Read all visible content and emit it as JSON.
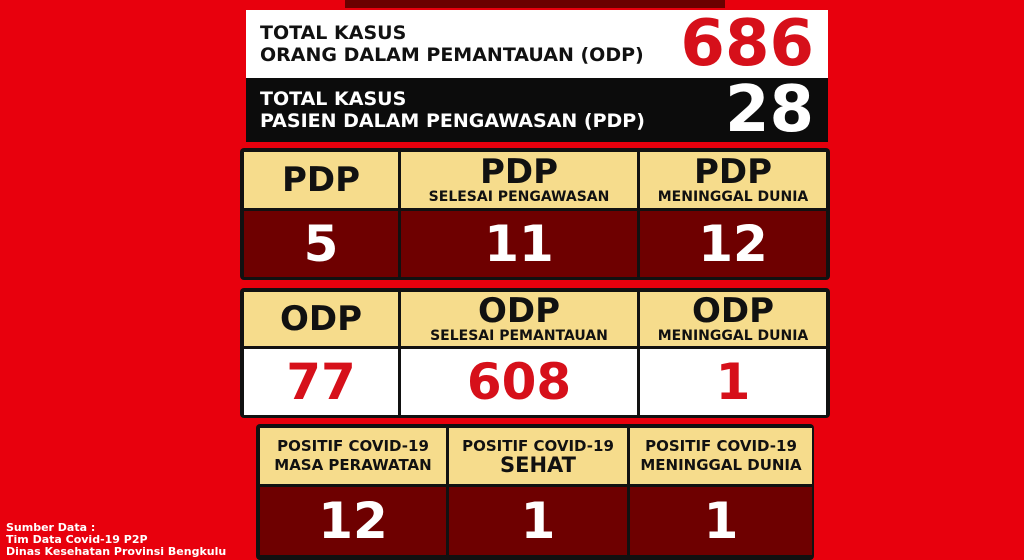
{
  "summary": [
    {
      "lines": [
        "TOTAL KASUS",
        "ORANG DALAM PEMANTAUAN (ODP)"
      ],
      "value": 686
    },
    {
      "lines": [
        "TOTAL KASUS",
        "PASIEN DALAM PENGAWASAN (PDP)"
      ],
      "value": 28
    }
  ],
  "tables": [
    {
      "columns": [
        {
          "title": "PDP",
          "value": 5
        },
        {
          "title": "PDP",
          "subtitle": "SELESAI PENGAWASAN",
          "value": 11
        },
        {
          "title": "PDP",
          "subtitle": "MENINGGAL DUNIA",
          "value": 12
        }
      ]
    },
    {
      "columns": [
        {
          "title": "ODP",
          "value": 77
        },
        {
          "title": "ODP",
          "subtitle": "SELESAI PEMANTAUAN",
          "value": 608
        },
        {
          "title": "ODP",
          "subtitle": "MENINGGAL DUNIA",
          "value": 1
        }
      ]
    },
    {
      "columns": [
        {
          "title": "POSITIF COVID-19",
          "subtitle": "MASA PERAWATAN",
          "value": 12
        },
        {
          "title": "POSITIF COVID-19",
          "subtitle": "SEHAT",
          "value": 1
        },
        {
          "title": "POSITIF COVID-19",
          "subtitle": "MENINGGAL DUNIA",
          "value": 1
        }
      ]
    }
  ],
  "source": [
    "Sumber Data :",
    "Tim Data Covid-19 P2P",
    "Dinas Kesehatan Provinsi Bengkulu"
  ]
}
